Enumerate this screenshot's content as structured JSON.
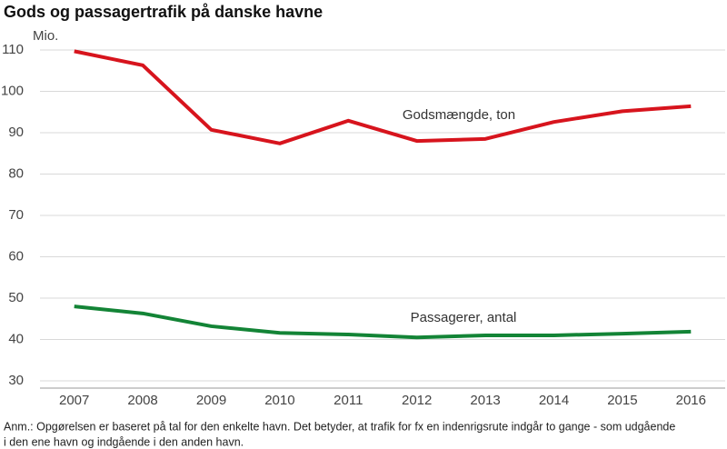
{
  "chart_data": {
    "type": "line",
    "title": "Gods og passagertrafik på danske havne",
    "y_label": "Mio.",
    "categories": [
      "2007",
      "2008",
      "2009",
      "2010",
      "2011",
      "2012",
      "2013",
      "2014",
      "2015",
      "2016"
    ],
    "series": [
      {
        "name": "Godsmængde, ton",
        "color": "#d7141d",
        "values": [
          109.7,
          106.3,
          90.7,
          87.4,
          92.9,
          88.0,
          88.5,
          92.6,
          95.2,
          96.4
        ]
      },
      {
        "name": "Passagerer, antal",
        "color": "#138436",
        "values": [
          48.0,
          46.3,
          43.2,
          41.6,
          41.2,
          40.5,
          41.0,
          41.0,
          41.4,
          41.9
        ]
      }
    ],
    "ylim": [
      30,
      110
    ],
    "yticks": [
      30,
      40,
      50,
      60,
      70,
      80,
      90,
      100,
      110
    ],
    "grid": true,
    "note": [
      "Anm.: Opgørelsen er baseret på tal for den enkelte havn. Det betyder, at trafik for fx en indenrigsrute indgår to gange - som udgående",
      "i den ene havn og indgående i den anden havn."
    ]
  }
}
